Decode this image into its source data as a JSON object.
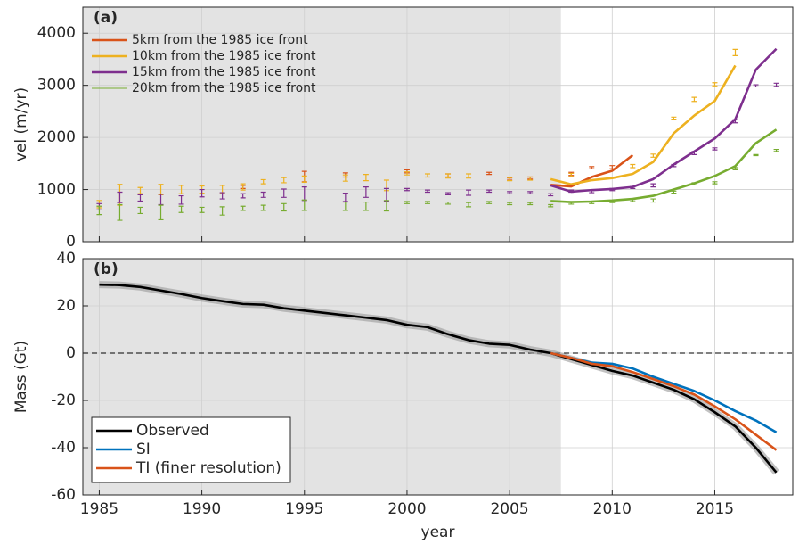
{
  "chart_data": [
    {
      "type": "line",
      "annotation": "(a)",
      "ylabel": "vel (m/yr)",
      "xlim": [
        1984.2,
        2018.8
      ],
      "ylim": [
        0,
        4500
      ],
      "xticks": [
        1985,
        1990,
        1995,
        2000,
        2005,
        2010,
        2015
      ],
      "yticks": [
        0,
        1000,
        2000,
        3000,
        4000
      ],
      "grid": true,
      "shaded_span": [
        1984.2,
        2007.5
      ],
      "legend": "top-left",
      "series": [
        {
          "name": "5km from the 1985 ice front",
          "color": "#d95319",
          "x": [
            2007,
            2008,
            2009,
            2010,
            2011
          ],
          "values": [
            1090,
            1060,
            1240,
            1360,
            1660
          ],
          "obs_x": [
            1992,
            1995,
            1997,
            2000,
            2002,
            2004,
            2005,
            2006,
            2008,
            2009,
            2010
          ],
          "obs_values": [
            1050,
            1250,
            1280,
            1350,
            1270,
            1310,
            1200,
            1220,
            1300,
            1420,
            1430
          ],
          "obs_errors": [
            30,
            100,
            40,
            30,
            30,
            20,
            20,
            20,
            30,
            20,
            30
          ]
        },
        {
          "name": "10km from the 1985 ice front",
          "color": "#edb120",
          "x": [
            2007,
            2008,
            2009,
            2010,
            2011,
            2012,
            2013,
            2014,
            2015,
            2016
          ],
          "values": [
            1200,
            1100,
            1180,
            1220,
            1300,
            1530,
            2080,
            2420,
            2700,
            3380
          ],
          "obs_x": [
            1985,
            1986,
            1987,
            1988,
            1989,
            1990,
            1991,
            1992,
            1993,
            1994,
            1995,
            1997,
            1998,
            1999,
            2000,
            2001,
            2002,
            2003,
            2005,
            2006,
            2008,
            2011,
            2012,
            2013,
            2014,
            2015,
            2016
          ],
          "obs_values": [
            720,
            900,
            980,
            1000,
            1000,
            1000,
            1000,
            1050,
            1150,
            1180,
            1200,
            1220,
            1230,
            1080,
            1310,
            1270,
            1260,
            1260,
            1200,
            1210,
            1280,
            1450,
            1650,
            2370,
            2730,
            3020,
            3630
          ],
          "obs_errors": [
            70,
            200,
            60,
            100,
            80,
            70,
            80,
            60,
            40,
            50,
            60,
            60,
            60,
            100,
            30,
            30,
            40,
            40,
            30,
            30,
            30,
            30,
            30,
            20,
            40,
            30,
            60
          ]
        },
        {
          "name": "15km from the 1985 ice front",
          "color": "#7e2f8e",
          "x": [
            2007,
            2008,
            2009,
            2010,
            2011,
            2012,
            2013,
            2014,
            2015,
            2016,
            2017,
            2018
          ],
          "values": [
            1080,
            960,
            990,
            1010,
            1050,
            1200,
            1480,
            1730,
            1980,
            2350,
            3300,
            3700
          ],
          "obs_x": [
            1985,
            1986,
            1987,
            1988,
            1989,
            1990,
            1991,
            1992,
            1993,
            1994,
            1995,
            1997,
            1998,
            1999,
            2000,
            2001,
            2002,
            2003,
            2004,
            2005,
            2006,
            2007,
            2008,
            2009,
            2010,
            2011,
            2012,
            2013,
            2014,
            2015,
            2016,
            2017,
            2018
          ],
          "obs_values": [
            670,
            850,
            840,
            810,
            800,
            930,
            880,
            880,
            900,
            930,
            920,
            850,
            950,
            900,
            1000,
            970,
            920,
            940,
            970,
            940,
            940,
            900,
            970,
            960,
            1000,
            1040,
            1080,
            1460,
            1700,
            1780,
            2310,
            2990,
            3010
          ],
          "obs_errors": [
            60,
            100,
            60,
            100,
            80,
            70,
            60,
            40,
            50,
            80,
            130,
            80,
            100,
            120,
            20,
            20,
            20,
            50,
            20,
            20,
            20,
            20,
            20,
            20,
            20,
            20,
            30,
            20,
            30,
            20,
            30,
            20,
            30
          ]
        },
        {
          "name": "20km from the 1985 ice front",
          "color": "#77ac30",
          "x": [
            2007,
            2008,
            2009,
            2010,
            2011,
            2012,
            2013,
            2014,
            2015,
            2016,
            2017,
            2018
          ],
          "values": [
            780,
            760,
            770,
            790,
            820,
            880,
            1000,
            1120,
            1260,
            1450,
            1890,
            2150
          ],
          "obs_x": [
            1985,
            1986,
            1987,
            1988,
            1989,
            1990,
            1991,
            1992,
            1993,
            1994,
            1995,
            1997,
            1998,
            1999,
            2000,
            2001,
            2002,
            2003,
            2004,
            2005,
            2006,
            2007,
            2008,
            2009,
            2010,
            2011,
            2012,
            2013,
            2014,
            2015,
            2016,
            2017,
            2018
          ],
          "obs_values": [
            600,
            560,
            600,
            560,
            620,
            610,
            590,
            640,
            650,
            660,
            700,
            680,
            680,
            690,
            750,
            750,
            740,
            710,
            750,
            730,
            730,
            690,
            740,
            750,
            770,
            790,
            790,
            950,
            1110,
            1130,
            1400,
            1660,
            1750
          ],
          "obs_errors": [
            80,
            150,
            60,
            140,
            60,
            50,
            80,
            40,
            50,
            70,
            100,
            80,
            80,
            100,
            20,
            20,
            20,
            40,
            20,
            20,
            20,
            20,
            20,
            20,
            20,
            20,
            30,
            20,
            20,
            20,
            20,
            10,
            20
          ]
        }
      ]
    },
    {
      "type": "line",
      "annotation": "(b)",
      "ylabel": "Mass (Gt)",
      "xlabel": "year",
      "xlim": [
        1984.2,
        2018.8
      ],
      "ylim": [
        -60,
        40
      ],
      "xticks": [
        1985,
        1990,
        1995,
        2000,
        2005,
        2010,
        2015
      ],
      "yticks": [
        -60,
        -40,
        -20,
        0,
        20,
        40
      ],
      "grid": true,
      "shaded_span": [
        1984.2,
        2007.5
      ],
      "hline": 0,
      "legend": "bottom-left",
      "series": [
        {
          "name": "Observed",
          "color": "#000000",
          "x": [
            1985,
            1986,
            1987,
            1988,
            1989,
            1990,
            1991,
            1992,
            1993,
            1994,
            1995,
            1996,
            1997,
            1998,
            1999,
            2000,
            2001,
            2002,
            2003,
            2004,
            2005,
            2006,
            2007,
            2008,
            2009,
            2010,
            2011,
            2012,
            2013,
            2014,
            2015,
            2016,
            2017,
            2018
          ],
          "values": [
            29,
            28.8,
            28,
            26.5,
            25,
            23.3,
            22,
            20.8,
            20.5,
            19,
            18,
            17,
            16,
            15,
            14,
            12,
            11,
            8,
            5.5,
            4,
            3.5,
            1.5,
            0,
            -2.5,
            -5,
            -7.5,
            -9.5,
            -12.5,
            -15.5,
            -19.5,
            -25,
            -31,
            -40,
            -50.5
          ]
        },
        {
          "name": "SI",
          "color": "#0072bd",
          "x": [
            2007,
            2008,
            2009,
            2010,
            2011,
            2012,
            2013,
            2014,
            2015,
            2016,
            2017,
            2018
          ],
          "values": [
            0,
            -2,
            -4,
            -4.5,
            -6.5,
            -10,
            -13,
            -16,
            -20,
            -24.5,
            -28.5,
            -33.5
          ]
        },
        {
          "name": "TI (finer resolution)",
          "color": "#d95319",
          "x": [
            2007,
            2008,
            2009,
            2010,
            2011,
            2012,
            2013,
            2014,
            2015,
            2016,
            2017,
            2018
          ],
          "values": [
            0,
            -2,
            -4.5,
            -5.5,
            -8,
            -11,
            -14,
            -17.5,
            -22.5,
            -28,
            -34.5,
            -41
          ]
        }
      ]
    }
  ]
}
